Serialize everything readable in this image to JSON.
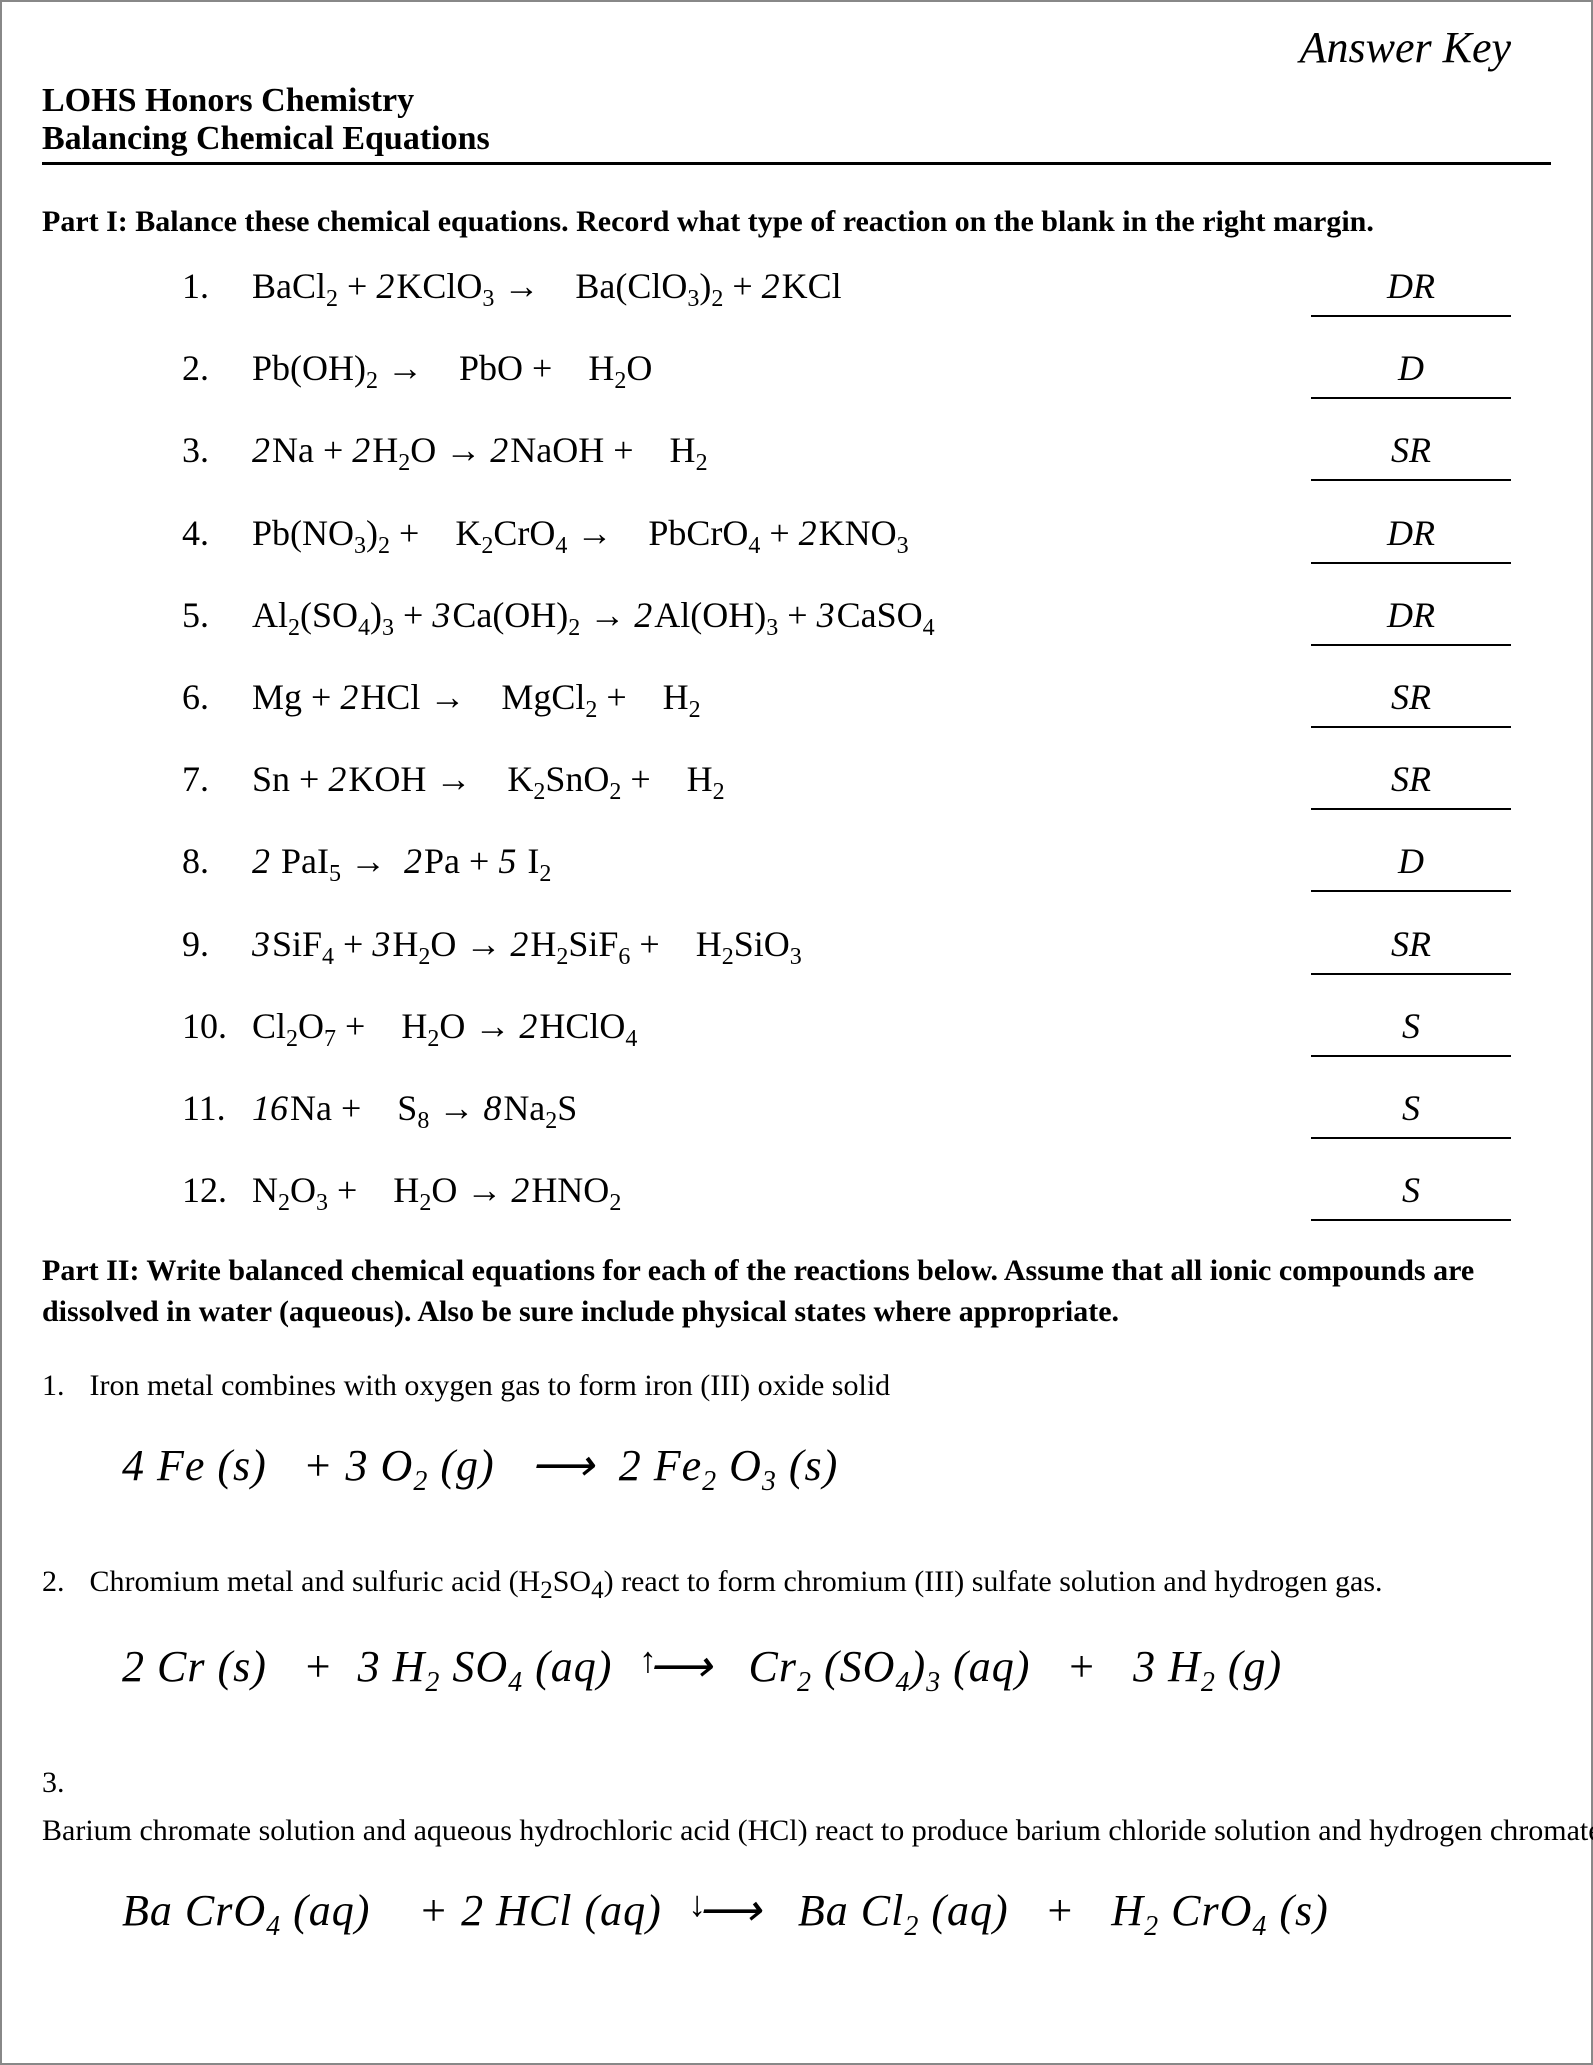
{
  "answer_key_label": "Answer Key",
  "header_line1": "LOHS Honors Chemistry",
  "header_line2": "Balancing Chemical Equations",
  "part1_instructions": "Part I: Balance these chemical equations.  Record what type of reaction on the blank in the right margin.",
  "equations": [
    {
      "num": "1.",
      "tokens": [
        {
          "t": "BaCl"
        },
        {
          "sub": "2"
        },
        {
          "t": " + "
        },
        {
          "coef": "2"
        },
        {
          "t": "KClO"
        },
        {
          "sub": "3"
        },
        {
          "t": " →    Ba(ClO"
        },
        {
          "sub": "3"
        },
        {
          "t": ")"
        },
        {
          "sub": "2"
        },
        {
          "t": " + "
        },
        {
          "coef": "2"
        },
        {
          "t": "KCl"
        }
      ],
      "answer": "DR"
    },
    {
      "num": "2.",
      "tokens": [
        {
          "t": "Pb(OH)"
        },
        {
          "sub": "2"
        },
        {
          "t": " →    PbO +    H"
        },
        {
          "sub": "2"
        },
        {
          "t": "O"
        }
      ],
      "answer": "D"
    },
    {
      "num": "3.",
      "tokens": [
        {
          "coef": "2"
        },
        {
          "t": "Na + "
        },
        {
          "coef": "2"
        },
        {
          "t": "H"
        },
        {
          "sub": "2"
        },
        {
          "t": "O → "
        },
        {
          "coef": "2"
        },
        {
          "t": "NaOH +    H"
        },
        {
          "sub": "2"
        }
      ],
      "answer": "SR"
    },
    {
      "num": "4.",
      "tokens": [
        {
          "t": "Pb(NO"
        },
        {
          "sub": "3"
        },
        {
          "t": ")"
        },
        {
          "sub": "2"
        },
        {
          "t": " +    K"
        },
        {
          "sub": "2"
        },
        {
          "t": "CrO"
        },
        {
          "sub": "4"
        },
        {
          "t": " →    PbCrO"
        },
        {
          "sub": "4"
        },
        {
          "t": " + "
        },
        {
          "coef": "2"
        },
        {
          "t": "KNO"
        },
        {
          "sub": "3"
        }
      ],
      "answer": "DR"
    },
    {
      "num": "5.",
      "tokens": [
        {
          "t": "Al"
        },
        {
          "sub": "2"
        },
        {
          "t": "(SO"
        },
        {
          "sub": "4"
        },
        {
          "t": ")"
        },
        {
          "sub": "3"
        },
        {
          "t": " + "
        },
        {
          "coef": "3"
        },
        {
          "t": "Ca(OH)"
        },
        {
          "sub": "2"
        },
        {
          "t": " → "
        },
        {
          "coef": "2"
        },
        {
          "t": "Al(OH)"
        },
        {
          "sub": "3"
        },
        {
          "t": " + "
        },
        {
          "coef": "3"
        },
        {
          "t": "CaSO"
        },
        {
          "sub": "4"
        }
      ],
      "answer": "DR"
    },
    {
      "num": "6.",
      "tokens": [
        {
          "t": "Mg + "
        },
        {
          "coef": "2"
        },
        {
          "t": "HCl →    MgCl"
        },
        {
          "sub": "2"
        },
        {
          "t": " +    H"
        },
        {
          "sub": "2"
        }
      ],
      "answer": "SR"
    },
    {
      "num": "7.",
      "tokens": [
        {
          "t": "Sn + "
        },
        {
          "coef": "2"
        },
        {
          "t": "KOH →    K"
        },
        {
          "sub": "2"
        },
        {
          "t": "SnO"
        },
        {
          "sub": "2"
        },
        {
          "t": " +    H"
        },
        {
          "sub": "2"
        }
      ],
      "answer": "SR"
    },
    {
      "num": "8.",
      "tokens": [
        {
          "coef": "2 "
        },
        {
          "t": "PaI"
        },
        {
          "sub": "5"
        },
        {
          "t": " →  "
        },
        {
          "coef": "2"
        },
        {
          "t": "Pa + "
        },
        {
          "coef": "5 "
        },
        {
          "t": "I"
        },
        {
          "sub": "2"
        }
      ],
      "answer": "D"
    },
    {
      "num": "9.",
      "tokens": [
        {
          "coef": "3"
        },
        {
          "t": "SiF"
        },
        {
          "sub": "4"
        },
        {
          "t": " + "
        },
        {
          "coef": "3"
        },
        {
          "t": "H"
        },
        {
          "sub": "2"
        },
        {
          "t": "O → "
        },
        {
          "coef": "2"
        },
        {
          "t": "H"
        },
        {
          "sub": "2"
        },
        {
          "t": "SiF"
        },
        {
          "sub": "6"
        },
        {
          "t": " +    H"
        },
        {
          "sub": "2"
        },
        {
          "t": "SiO"
        },
        {
          "sub": "3"
        }
      ],
      "answer": "SR"
    },
    {
      "num": "10.",
      "tokens": [
        {
          "t": "Cl"
        },
        {
          "sub": "2"
        },
        {
          "t": "O"
        },
        {
          "sub": "7"
        },
        {
          "t": " +    H"
        },
        {
          "sub": "2"
        },
        {
          "t": "O → "
        },
        {
          "coef": "2"
        },
        {
          "t": "HClO"
        },
        {
          "sub": "4"
        }
      ],
      "answer": "S"
    },
    {
      "num": "11.",
      "tokens": [
        {
          "coef": "16"
        },
        {
          "t": "Na +    S"
        },
        {
          "sub": "8"
        },
        {
          "t": " → "
        },
        {
          "coef": "8"
        },
        {
          "t": "Na"
        },
        {
          "sub": "2"
        },
        {
          "t": "S"
        }
      ],
      "answer": "S"
    },
    {
      "num": "12.",
      "tokens": [
        {
          "t": "N"
        },
        {
          "sub": "2"
        },
        {
          "t": "O"
        },
        {
          "sub": "3"
        },
        {
          "t": " +    H"
        },
        {
          "sub": "2"
        },
        {
          "t": "O → "
        },
        {
          "coef": "2"
        },
        {
          "t": "HNO"
        },
        {
          "sub": "2"
        }
      ],
      "answer": "S"
    }
  ],
  "part2_instructions": "Part II: Write balanced chemical equations for each of the reactions below.  Assume that all ionic compounds are dissolved in water (aqueous).  Also be sure include physical states where appropriate.",
  "part2_items": [
    {
      "num": "1.",
      "prompt_tokens": [
        {
          "t": "Iron metal combines with oxygen gas to form iron (III) oxide solid"
        }
      ],
      "eq_tokens": [
        {
          "t": "4 Fe (s)   + 3 O"
        },
        {
          "sub": "2"
        },
        {
          "t": " (g)   ⟶  2 Fe"
        },
        {
          "sub": "2"
        },
        {
          "t": " O"
        },
        {
          "sub": "3"
        },
        {
          "t": " (s)"
        }
      ],
      "arrow_annot": null
    },
    {
      "num": "2.",
      "prompt_tokens": [
        {
          "t": "Chromium metal and sulfuric acid (H"
        },
        {
          "sub": "2"
        },
        {
          "t": "SO"
        },
        {
          "sub": "4"
        },
        {
          "t": ") react to form chromium (III) sulfate solution and hydrogen gas."
        }
      ],
      "eq_tokens": [
        {
          "t": "2 Cr (s)   +  3 H"
        },
        {
          "sub": "2"
        },
        {
          "t": " SO"
        },
        {
          "sub": "4"
        },
        {
          "t": " (aq)   "
        },
        {
          "arrow": "up"
        },
        {
          "t": "⟶   Cr"
        },
        {
          "sub": "2"
        },
        {
          "t": " (SO"
        },
        {
          "sub": "4"
        },
        {
          "t": ")"
        },
        {
          "sub": "3"
        },
        {
          "t": " (aq)   +   3 H"
        },
        {
          "sub": "2"
        },
        {
          "t": " (g)"
        }
      ],
      "arrow_annot": "up"
    },
    {
      "num": "3.",
      "prompt_tokens": [
        {
          "t": "Barium chromate solution and aqueous hydrochloric acid (HCl) react to produce barium chloride solution and hydrogen chromate (solid)."
        }
      ],
      "eq_tokens": [
        {
          "t": "Ba CrO"
        },
        {
          "sub": "4"
        },
        {
          "t": " (aq)    + 2 HCl (aq)   "
        },
        {
          "arrow": "down"
        },
        {
          "t": "⟶   Ba Cl"
        },
        {
          "sub": "2"
        },
        {
          "t": " (aq)   +   H"
        },
        {
          "sub": "2"
        },
        {
          "t": " CrO"
        },
        {
          "sub": "4"
        },
        {
          "t": " (s)"
        }
      ],
      "arrow_annot": "down"
    }
  ],
  "colors": {
    "page_bg": "#ffffff",
    "text": "#000000",
    "border": "#888888"
  },
  "fonts": {
    "body": "Times New Roman",
    "handwritten": "Brush Script MT / cursive",
    "title_size_pt": 24,
    "instruction_size_pt": 22,
    "equation_size_pt": 26,
    "handwritten_size_pt": 32
  }
}
